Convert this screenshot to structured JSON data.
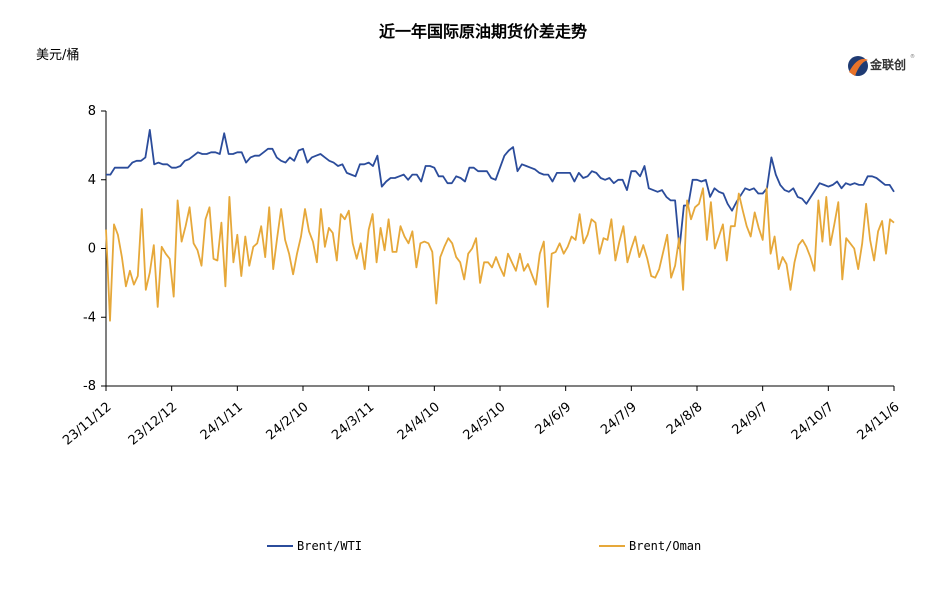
{
  "logo": {
    "text": "金联创",
    "reg": "®"
  },
  "chart_data": {
    "type": "line",
    "title": "近一年国际原油期货价差走势",
    "ylabel": "美元/桶",
    "xlabel": "",
    "ylim": [
      -8,
      8
    ],
    "yticks": [
      "8",
      "4",
      "0",
      "-4",
      "-8"
    ],
    "x_tick_labels": [
      "23/11/12",
      "23/12/12",
      "24/1/11",
      "24/2/10",
      "24/3/11",
      "24/4/10",
      "24/5/10",
      "24/6/9",
      "24/7/9",
      "24/8/8",
      "24/9/7",
      "24/10/7",
      "24/11/6"
    ],
    "grid": false,
    "legend_position": "bottom",
    "series": [
      {
        "name": "Brent/WTI",
        "color": "#2b4c9b",
        "values": [
          4.3,
          4.3,
          4.7,
          4.7,
          4.7,
          4.7,
          5.0,
          5.1,
          5.1,
          5.3,
          6.9,
          4.9,
          5.0,
          4.9,
          4.9,
          4.7,
          4.7,
          4.8,
          5.1,
          5.2,
          5.4,
          5.6,
          5.5,
          5.5,
          5.6,
          5.6,
          5.5,
          6.7,
          5.5,
          5.5,
          5.6,
          5.6,
          5.0,
          5.3,
          5.4,
          5.4,
          5.6,
          5.8,
          5.8,
          5.3,
          5.1,
          5.0,
          5.3,
          5.1,
          5.7,
          5.8,
          5.0,
          5.3,
          5.4,
          5.5,
          5.3,
          5.1,
          5.0,
          4.8,
          4.9,
          4.4,
          4.3,
          4.2,
          4.9,
          4.9,
          5.0,
          4.8,
          5.4,
          3.6,
          3.9,
          4.1,
          4.1,
          4.2,
          4.3,
          4.0,
          4.3,
          4.3,
          3.9,
          4.8,
          4.8,
          4.7,
          4.2,
          4.2,
          3.8,
          3.8,
          4.2,
          4.1,
          3.9,
          4.7,
          4.7,
          4.5,
          4.5,
          4.5,
          4.1,
          4.0,
          4.7,
          5.4,
          5.7,
          5.9,
          4.5,
          4.9,
          4.8,
          4.7,
          4.6,
          4.4,
          4.3,
          4.3,
          3.9,
          4.4,
          4.4,
          4.4,
          4.4,
          3.9,
          4.4,
          4.1,
          4.2,
          4.5,
          4.4,
          4.1,
          4.0,
          4.1,
          3.8,
          4.0,
          4.0,
          3.4,
          4.5,
          4.5,
          4.2,
          4.8,
          3.5,
          3.4,
          3.3,
          3.4,
          3.0,
          2.8,
          2.8,
          0.0,
          2.5,
          2.5,
          4.0,
          4.0,
          3.9,
          4.0,
          3.0,
          3.5,
          3.3,
          3.2,
          2.6,
          2.2,
          2.7,
          3.1,
          3.5,
          3.4,
          3.5,
          3.2,
          3.2,
          3.5,
          5.3,
          4.3,
          3.7,
          3.4,
          3.3,
          3.5,
          3.0,
          2.9,
          2.6,
          3.0,
          3.4,
          3.8,
          3.7,
          3.6,
          3.7,
          3.9,
          3.5,
          3.8,
          3.7,
          3.8,
          3.7,
          3.7,
          4.2,
          4.2,
          4.1,
          3.9,
          3.7,
          3.7,
          3.3
        ]
      },
      {
        "name": "Brent/Oman",
        "color": "#e6a83a",
        "values": [
          1.1,
          -4.2,
          1.4,
          0.8,
          -0.5,
          -2.2,
          -1.3,
          -2.1,
          -1.6,
          2.3,
          -2.4,
          -1.4,
          0.2,
          -3.4,
          0.1,
          -0.3,
          -0.6,
          -2.8,
          2.8,
          0.4,
          1.3,
          2.4,
          0.3,
          -0.1,
          -1.0,
          1.7,
          2.4,
          -0.6,
          -0.7,
          1.5,
          -2.2,
          3.0,
          -0.8,
          0.8,
          -1.6,
          0.7,
          -1.0,
          0.1,
          0.3,
          1.3,
          -0.5,
          2.4,
          -1.2,
          0.6,
          2.3,
          0.5,
          -0.3,
          -1.5,
          -0.3,
          0.7,
          2.3,
          1.0,
          0.4,
          -0.8,
          2.3,
          0.1,
          1.2,
          0.9,
          -0.7,
          2.0,
          1.7,
          2.2,
          0.3,
          -0.6,
          0.3,
          -1.2,
          1.1,
          2.0,
          -0.8,
          1.2,
          -0.1,
          1.7,
          -0.2,
          -0.2,
          1.3,
          0.7,
          0.3,
          1.0,
          -1.1,
          0.3,
          0.4,
          0.3,
          -0.2,
          -3.2,
          -0.5,
          0.1,
          0.6,
          0.3,
          -0.5,
          -0.8,
          -1.8,
          -0.3,
          0.0,
          0.6,
          -2.0,
          -0.8,
          -0.8,
          -1.1,
          -0.5,
          -1.1,
          -1.6,
          -0.3,
          -0.8,
          -1.3,
          -0.3,
          -1.3,
          -0.9,
          -1.5,
          -2.1,
          -0.3,
          0.4,
          -3.4,
          -0.3,
          -0.2,
          0.3,
          -0.3,
          0.1,
          0.7,
          0.5,
          2.0,
          0.3,
          0.8,
          1.7,
          1.5,
          -0.3,
          0.6,
          0.5,
          1.7,
          -0.7,
          0.4,
          1.3,
          -0.8,
          0.0,
          0.7,
          -0.5,
          0.2,
          -0.6,
          -1.6,
          -1.7,
          -1.2,
          -0.2,
          0.8,
          -1.7,
          -1.0,
          0.6,
          -2.4,
          2.8,
          1.7,
          2.4,
          2.6,
          3.5,
          0.5,
          2.7,
          0.0,
          0.7,
          1.4,
          -0.7,
          1.3,
          1.3,
          3.2,
          2.2,
          1.3,
          0.7,
          2.1,
          1.2,
          0.5,
          3.5,
          -0.3,
          0.7,
          -1.2,
          -0.5,
          -0.9,
          -2.4,
          -0.8,
          0.2,
          0.5,
          0.1,
          -0.5,
          -1.3,
          2.8,
          0.4,
          3.0,
          0.2,
          1.4,
          2.7,
          -1.8,
          0.6,
          0.3,
          0.0,
          -1.2,
          0.3,
          2.6,
          0.5,
          -0.7,
          1.0,
          1.6,
          -0.3,
          1.7,
          1.5
        ]
      }
    ]
  }
}
